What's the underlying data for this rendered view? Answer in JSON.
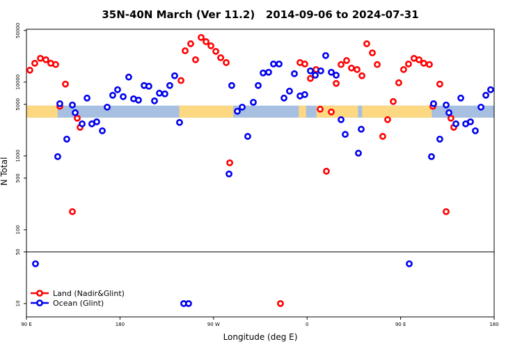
{
  "chart_data": {
    "type": "scatter",
    "title": "35N-40N March (Ver 11.2)   2014-09-06 to 2024-07-31",
    "x_label": "Longitude (deg E)",
    "y_label": "N Total",
    "log_y": true,
    "xlim": [
      90,
      540
    ],
    "ylim": [
      6.6,
      52000
    ],
    "xticks": [
      {
        "value": 90,
        "label": "90 E"
      },
      180,
      {
        "value": 270,
        "label": "90 W"
      },
      {
        "value": 360,
        "label": "0"
      },
      {
        "value": 450,
        "label": "90 E"
      },
      {
        "value": 540,
        "label": "180"
      }
    ],
    "yticks": [
      10,
      50,
      100,
      500,
      1000,
      5000,
      10000,
      50000
    ],
    "panel_break": 50,
    "legend": "lower left",
    "land_strip": {
      "land_color": "#fdd882",
      "ocean_color": "#a7bfe0",
      "ylim": [
        3300,
        4800
      ],
      "land": [
        [
          90,
          120
        ],
        [
          237,
          289
        ],
        [
          352,
          359
        ],
        [
          369,
          409
        ],
        [
          413,
          480
        ]
      ]
    },
    "series": [
      {
        "name": "Land (Nadir&Glint)",
        "color": "#ff0000",
        "x": [
          93.3,
          98.0,
          103.4,
          108.7,
          113.4,
          118.1,
          122.1,
          127.5,
          134.2,
          138.9,
          141.6,
          238.7,
          242.7,
          248.0,
          252.7,
          258.1,
          262.8,
          267.5,
          272.2,
          276.9,
          282.2,
          285.6,
          334.4,
          353.2,
          357.8,
          363.2,
          368.6,
          372.6,
          378.6,
          383.3,
          388.0,
          392.7,
          398.0,
          402.7,
          408.1,
          412.8,
          417.4,
          422.8,
          427.5,
          432.8,
          437.5,
          442.9,
          448.2,
          452.9,
          457.6,
          462.9,
          467.7,
          472.3,
          477.7,
          481.0,
          487.7,
          493.8,
          498.4,
          501.1
        ],
        "values": [
          14500,
          18000,
          21000,
          20100,
          18000,
          17300,
          4700,
          9400,
          176,
          3240,
          2440,
          10500,
          26600,
          33100,
          20100,
          40300,
          35300,
          31000,
          26100,
          21400,
          18400,
          807,
          10,
          18400,
          17600,
          11200,
          14800,
          4300,
          621,
          3940,
          9600,
          17300,
          19600,
          15500,
          14800,
          12200,
          33100,
          24900,
          17300,
          1840,
          3100,
          5460,
          9800,
          14800,
          17600,
          21000,
          20100,
          18000,
          17300,
          4700,
          9400,
          176,
          3240,
          2440
        ]
      },
      {
        "name": "Ocean (Glint)",
        "color": "#0000ee",
        "x": [
          98.7,
          120.1,
          122.1,
          128.8,
          134.2,
          136.9,
          143.6,
          148.3,
          152.9,
          157.6,
          163.0,
          167.7,
          173.0,
          177.7,
          183.1,
          188.4,
          193.1,
          197.8,
          203.2,
          207.8,
          213.2,
          217.9,
          223.2,
          227.9,
          232.6,
          237.3,
          241.3,
          246.0,
          284.9,
          287.5,
          292.9,
          297.6,
          302.9,
          308.3,
          313.0,
          317.7,
          323.0,
          327.7,
          333.1,
          337.8,
          343.1,
          347.8,
          353.2,
          357.8,
          363.2,
          367.9,
          373.2,
          377.9,
          383.3,
          388.0,
          392.7,
          396.7,
          409.4,
          412.1,
          458.3,
          479.7,
          481.7,
          487.7,
          493.8,
          496.5,
          503.2,
          507.9,
          512.6,
          517.2,
          521.9,
          527.3,
          532.0,
          536.6
        ],
        "values": [
          34.6,
          979,
          5100,
          1690,
          4900,
          3850,
          2720,
          6080,
          2720,
          2900,
          2190,
          4580,
          6640,
          7890,
          6350,
          11700,
          5940,
          5700,
          9000,
          8790,
          5570,
          7080,
          6930,
          9000,
          12200,
          2840,
          10,
          10,
          570,
          9000,
          4030,
          4580,
          1840,
          5330,
          9000,
          13300,
          13600,
          17600,
          17600,
          6080,
          7550,
          13000,
          6490,
          6780,
          14200,
          12400,
          14200,
          22900,
          13600,
          12400,
          3100,
          1960,
          1090,
          2300,
          34.6,
          979,
          5100,
          1690,
          4900,
          3850,
          2720,
          6080,
          2720,
          2900,
          2190,
          4580,
          6640,
          7890
        ]
      }
    ]
  }
}
